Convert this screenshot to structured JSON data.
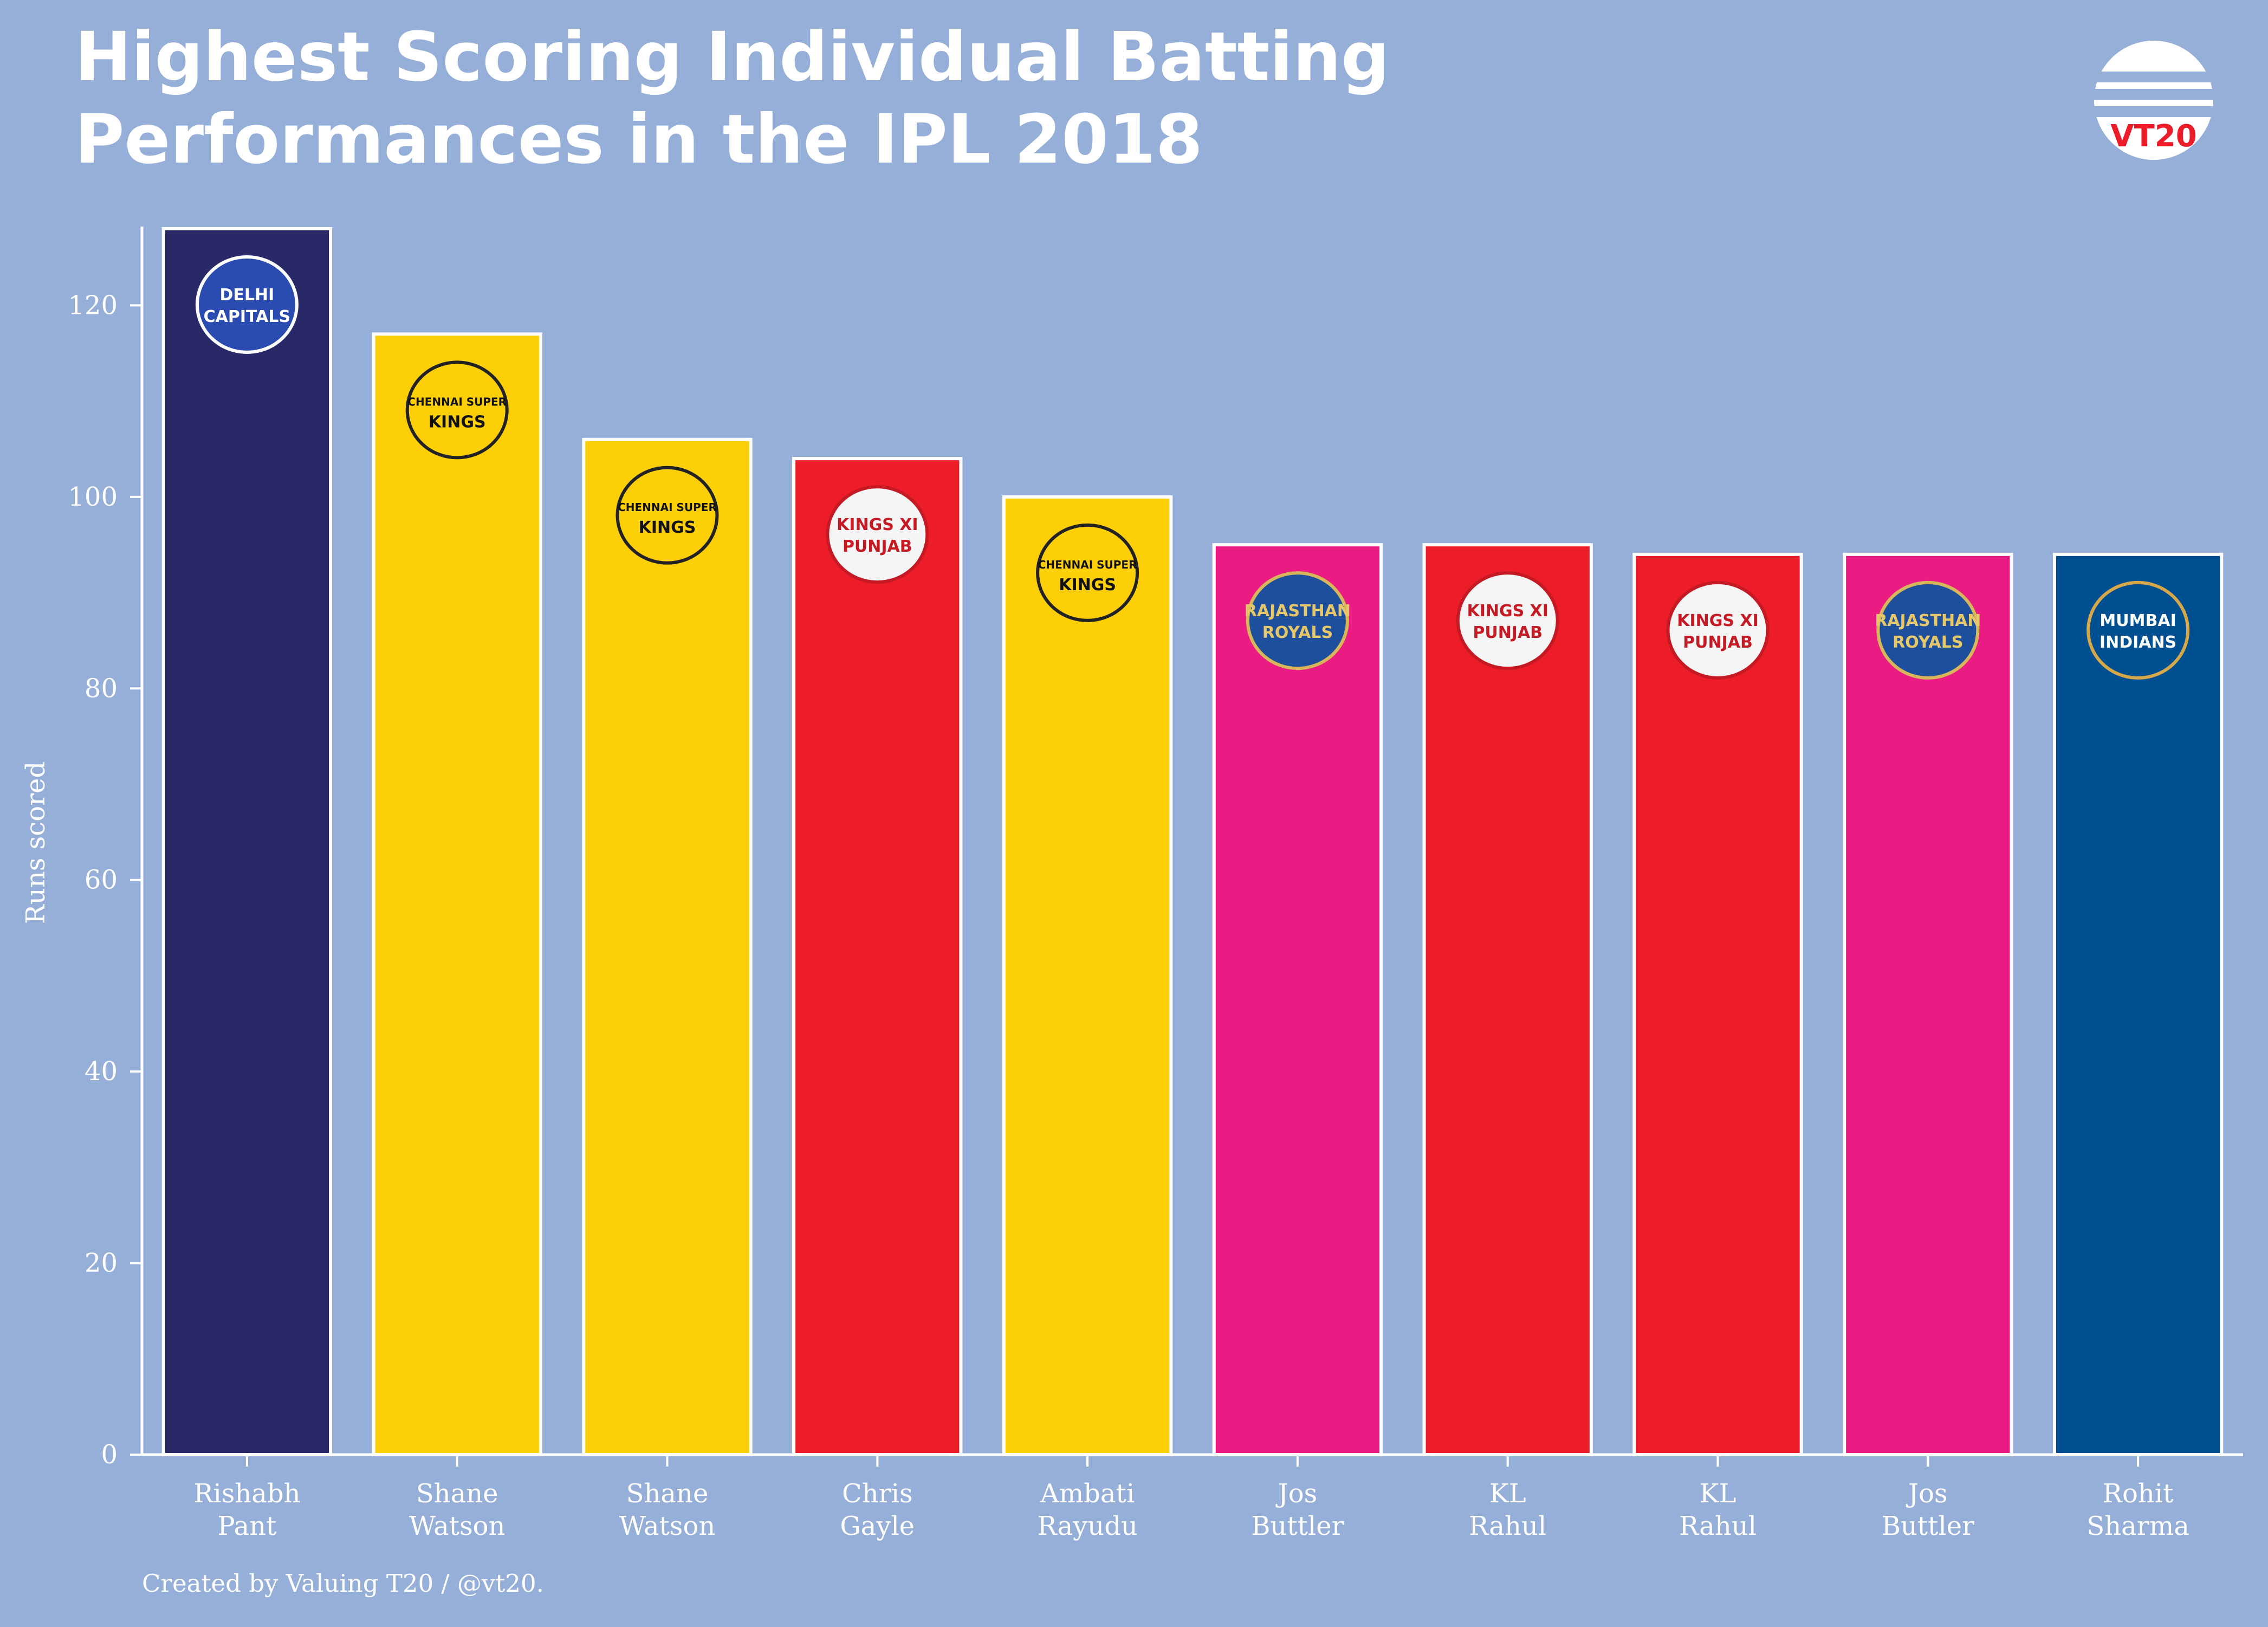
{
  "title_line1": "Highest Scoring Individual Batting",
  "title_line2": "Performances in the IPL 2018",
  "credit": "Created by Valuing T20 / @vt20.",
  "logo_text": "VT20",
  "chart_data": {
    "type": "bar",
    "title": "Highest Scoring Individual Batting Performances in the IPL 2018",
    "ylabel": "Runs scored",
    "xlabel": "",
    "ylim": [
      0,
      128
    ],
    "yticks": [
      0,
      20,
      40,
      60,
      80,
      100,
      120
    ],
    "grid": false,
    "categories": [
      [
        "Rishabh",
        "Pant"
      ],
      [
        "Shane",
        "Watson"
      ],
      [
        "Shane",
        "Watson"
      ],
      [
        "Chris",
        "Gayle"
      ],
      [
        "Ambati",
        "Rayudu"
      ],
      [
        "Jos",
        "Buttler"
      ],
      [
        "KL",
        "Rahul"
      ],
      [
        "KL",
        "Rahul"
      ],
      [
        "Jos",
        "Buttler"
      ],
      [
        "Rohit",
        "Sharma"
      ]
    ],
    "values": [
      128,
      117,
      106,
      104,
      100,
      95,
      95,
      94,
      94,
      94
    ],
    "teams": [
      "DELHI CAPITALS",
      "CHENNAI SUPER KINGS",
      "CHENNAI SUPER KINGS",
      "KINGS XI PUNJAB",
      "CHENNAI SUPER KINGS",
      "RAJASTHAN ROYALS",
      "KINGS XI PUNJAB",
      "KINGS XI PUNJAB",
      "RAJASTHAN ROYALS",
      "MUMBAI INDIANS"
    ],
    "colors": [
      "#282966",
      "#fccf06",
      "#fccf06",
      "#ed1c29",
      "#fccf06",
      "#eb1b84",
      "#ed1c29",
      "#ed1c29",
      "#eb1b84",
      "#004f91"
    ]
  }
}
